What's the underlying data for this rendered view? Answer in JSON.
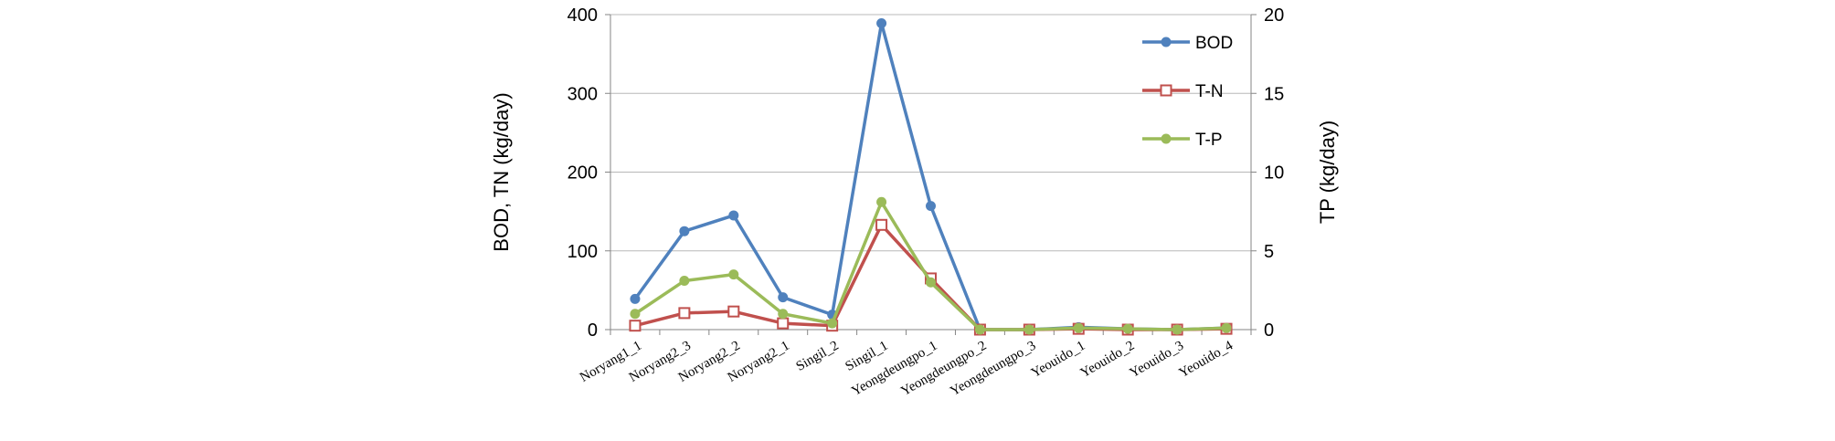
{
  "chart_data": {
    "type": "line",
    "categories": [
      "Noryang1_1",
      "Noryang2_3",
      "Noryang2_2",
      "Noryang2_1",
      "Singil_2",
      "Singil_1",
      "Yeongdeungpo_1",
      "Yeongdeungpo_2",
      "Yeongdeungpo_3",
      "Yeouido_1",
      "Yeouido_2",
      "Yeouido_3",
      "Yeouido_4"
    ],
    "series": [
      {
        "name": "BOD",
        "axis": "left",
        "color": "#4f81bd",
        "marker": "circle",
        "values": [
          39,
          125,
          145,
          41,
          19,
          389,
          157,
          0,
          0,
          3,
          1,
          0,
          2
        ]
      },
      {
        "name": "T-N",
        "axis": "left",
        "color": "#c0504d",
        "marker": "square-hollow",
        "values": [
          5,
          21,
          23,
          8,
          5,
          133,
          65,
          0,
          0,
          1,
          0,
          0,
          1
        ]
      },
      {
        "name": "T-P",
        "axis": "right",
        "color": "#9bbb59",
        "marker": "circle",
        "values": [
          1.0,
          3.1,
          3.5,
          1.0,
          0.4,
          8.1,
          3.0,
          0,
          0,
          0.1,
          0.05,
          0,
          0.1
        ]
      }
    ],
    "y_left": {
      "label": "BOD, TN (kg/day)",
      "lim": [
        0,
        400
      ],
      "ticks": [
        "0",
        "100",
        "200",
        "300",
        "400"
      ]
    },
    "y_right": {
      "label": "TP (kg/day)",
      "lim": [
        0,
        20
      ],
      "ticks": [
        "0",
        "5",
        "10",
        "15",
        "20"
      ]
    },
    "grid": true,
    "legend_position": "top-right"
  }
}
